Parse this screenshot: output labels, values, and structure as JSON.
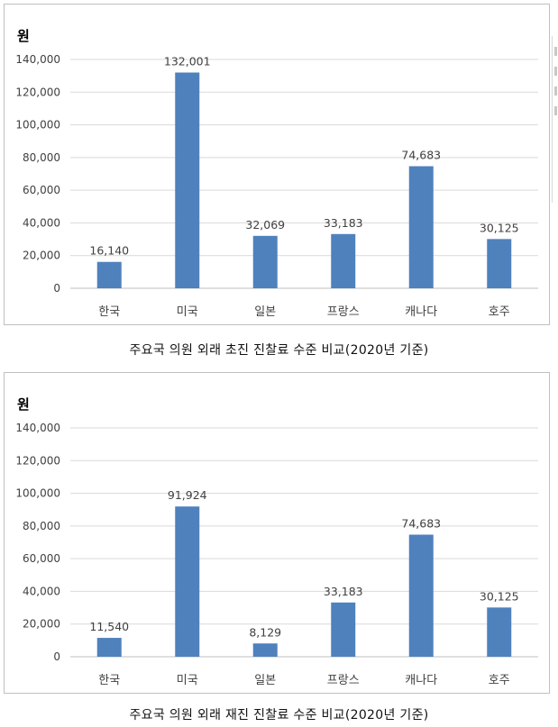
{
  "charts": [
    {
      "caption": "주요국 의원 외래 초진 진찰료 수준 비교(2020년 기준)"
    },
    {
      "caption": "주요국 의원 외래 재진 진찰료 수준 비교(2020년 기준)"
    }
  ],
  "colors": {
    "bar": "#4f81bd",
    "gridline": "#d9d9d9",
    "text": "#404040"
  },
  "chart_data": [
    {
      "type": "bar",
      "title": "",
      "ylabel": "원",
      "xlabel": "",
      "categories": [
        "한국",
        "미국",
        "일본",
        "프랑스",
        "캐나다",
        "호주"
      ],
      "values": [
        16140,
        132001,
        32069,
        33183,
        74683,
        30125
      ],
      "value_labels": [
        "16,140",
        "132,001",
        "32,069",
        "33,183",
        "74,683",
        "30,125"
      ],
      "yticks": [
        "0",
        "20,000",
        "40,000",
        "60,000",
        "80,000",
        "100,000",
        "120,000",
        "140,000"
      ],
      "ylim": [
        0,
        140000
      ],
      "grid": true,
      "legend": "none"
    },
    {
      "type": "bar",
      "title": "",
      "ylabel": "원",
      "xlabel": "",
      "categories": [
        "한국",
        "미국",
        "일본",
        "프랑스",
        "캐나다",
        "호주"
      ],
      "values": [
        11540,
        91924,
        8129,
        33183,
        74683,
        30125
      ],
      "value_labels": [
        "11,540",
        "91,924",
        "8,129",
        "33,183",
        "74,683",
        "30,125"
      ],
      "yticks": [
        "0",
        "20,000",
        "40,000",
        "60,000",
        "80,000",
        "100,000",
        "120,000",
        "140,000"
      ],
      "ylim": [
        0,
        140000
      ],
      "grid": true,
      "legend": "none"
    }
  ]
}
